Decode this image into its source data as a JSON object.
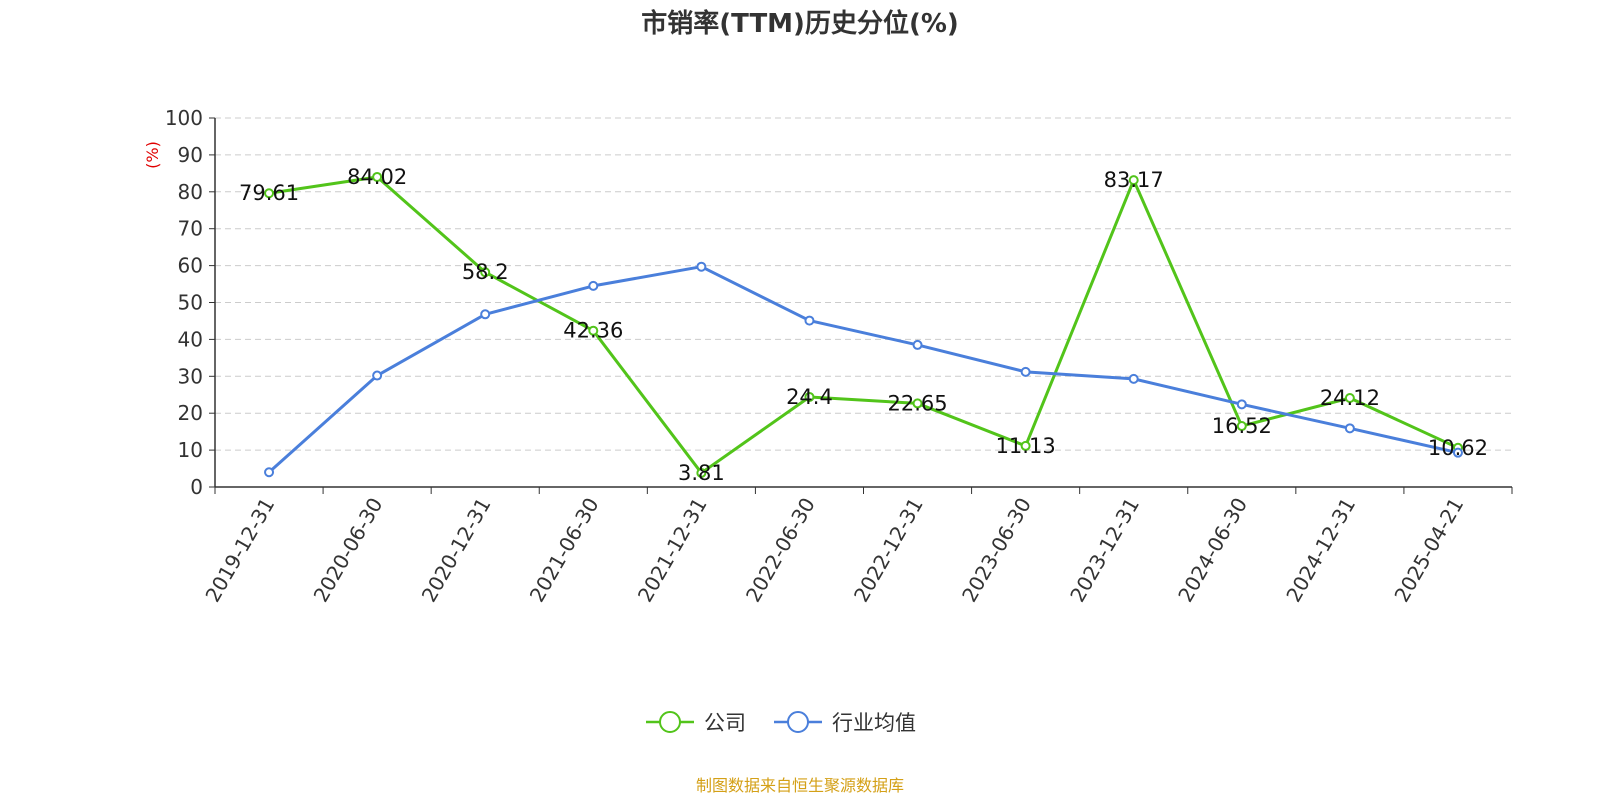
{
  "chart_data": {
    "type": "line",
    "title": "市销率(TTM)历史分位(%)",
    "ylabel": "(%)",
    "xlabel": "",
    "ylim": [
      0,
      100
    ],
    "yticks": [
      0,
      10,
      20,
      30,
      40,
      50,
      60,
      70,
      80,
      90,
      100
    ],
    "grid": true,
    "legend_position": "bottom-center",
    "categories": [
      "2019-12-31",
      "2020-06-30",
      "2020-12-31",
      "2021-06-30",
      "2021-12-31",
      "2022-06-30",
      "2022-12-31",
      "2023-06-30",
      "2023-12-31",
      "2024-06-30",
      "2024-12-31",
      "2025-04-21"
    ],
    "series": [
      {
        "name": "公司",
        "color": "#52c41a",
        "show_labels": true,
        "values": [
          79.61,
          84.02,
          58.2,
          42.36,
          3.81,
          24.4,
          22.65,
          11.13,
          83.17,
          16.52,
          24.12,
          10.62
        ]
      },
      {
        "name": "行业均值",
        "color": "#4a7fdb",
        "show_labels": false,
        "values": [
          4.0,
          30.2,
          46.8,
          54.5,
          59.7,
          45.1,
          38.5,
          31.2,
          29.3,
          22.4,
          15.9,
          9.3
        ]
      }
    ]
  },
  "source_text": "制图数据来自恒生聚源数据库",
  "colors": {
    "axis": "#333333",
    "grid": "#cccccc",
    "ylabel": "#e00000",
    "source": "#d4a017"
  }
}
